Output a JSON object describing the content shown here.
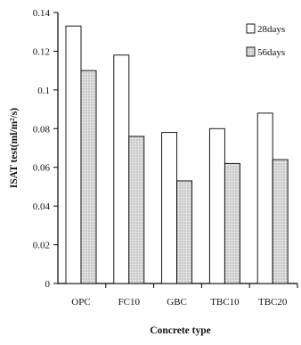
{
  "chart_data": {
    "type": "bar",
    "title": "",
    "xlabel": "Concrete type",
    "ylabel": "ISAT test(ml/m²/s)",
    "categories": [
      "OPC",
      "FC10",
      "GBC",
      "TBC10",
      "TBC20"
    ],
    "series": [
      {
        "name": "28days",
        "values": [
          0.133,
          0.118,
          0.078,
          0.08,
          0.088
        ],
        "fill": "#ffffff"
      },
      {
        "name": "56days",
        "values": [
          0.11,
          0.076,
          0.053,
          0.062,
          0.064
        ],
        "fill": "#d9d9d9"
      }
    ],
    "yticks": [
      "0",
      "0.02",
      "0.04",
      "0.06",
      "0.08",
      "0.1",
      "0.12",
      "0.14"
    ],
    "ylim": [
      0,
      0.14
    ],
    "grid": false,
    "legend": "top-right"
  }
}
